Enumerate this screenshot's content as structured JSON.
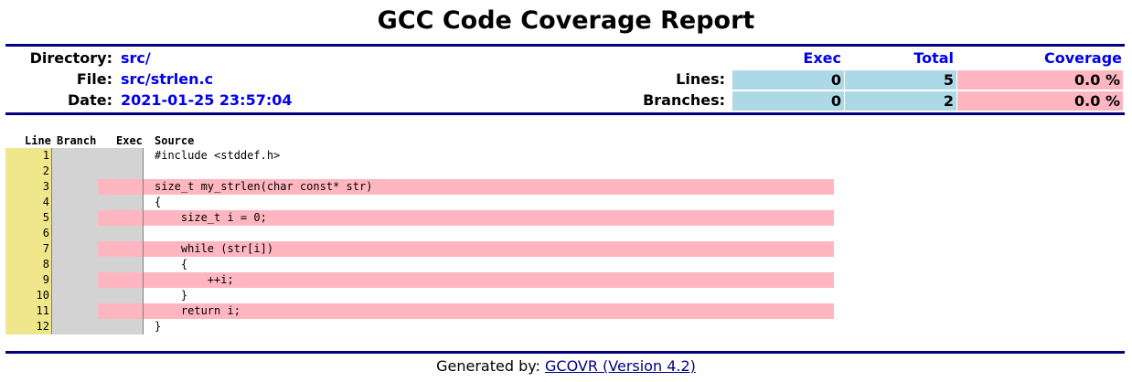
{
  "title": "GCC Code Coverage Report",
  "meta": {
    "directory_label": "Directory:",
    "directory": "src/",
    "file_label": "File:",
    "file": "src/strlen.c",
    "date_label": "Date:",
    "date": "2021-01-25 23:57:04"
  },
  "stats": {
    "exec_header": "Exec",
    "total_header": "Total",
    "coverage_header": "Coverage",
    "lines": {
      "label": "Lines:",
      "exec": "0",
      "total": "5",
      "coverage": "0.0 %"
    },
    "branches": {
      "label": "Branches:",
      "exec": "0",
      "total": "2",
      "coverage": "0.0 %"
    }
  },
  "source_table": {
    "headers": {
      "line": "Line",
      "branch": "Branch",
      "exec": "Exec",
      "source": "Source"
    },
    "rows": [
      {
        "line": "1",
        "code": "#include <stddef.h>",
        "uncovered": false
      },
      {
        "line": "2",
        "code": "",
        "uncovered": false
      },
      {
        "line": "3",
        "code": "size_t my_strlen(char const* str)",
        "uncovered": true
      },
      {
        "line": "4",
        "code": "{",
        "uncovered": false
      },
      {
        "line": "5",
        "code": "    size_t i = 0;",
        "uncovered": true
      },
      {
        "line": "6",
        "code": "",
        "uncovered": false
      },
      {
        "line": "7",
        "code": "    while (str[i])",
        "uncovered": true
      },
      {
        "line": "8",
        "code": "    {",
        "uncovered": false
      },
      {
        "line": "9",
        "code": "        ++i;",
        "uncovered": true
      },
      {
        "line": "10",
        "code": "    }",
        "uncovered": false
      },
      {
        "line": "11",
        "code": "    return i;",
        "uncovered": true
      },
      {
        "line": "12",
        "code": "}",
        "uncovered": false
      }
    ]
  },
  "footer": {
    "prefix": "Generated by: ",
    "link_text": "GCOVR (Version 4.2)"
  },
  "colors": {
    "rule": "#000080",
    "link": "#0000ee",
    "covered_blue": "#add8e6",
    "uncovered_pink": "#ffb6c1",
    "line_number_bg": "#f0e68c",
    "branch_exec_bg": "#d3d3d3"
  }
}
